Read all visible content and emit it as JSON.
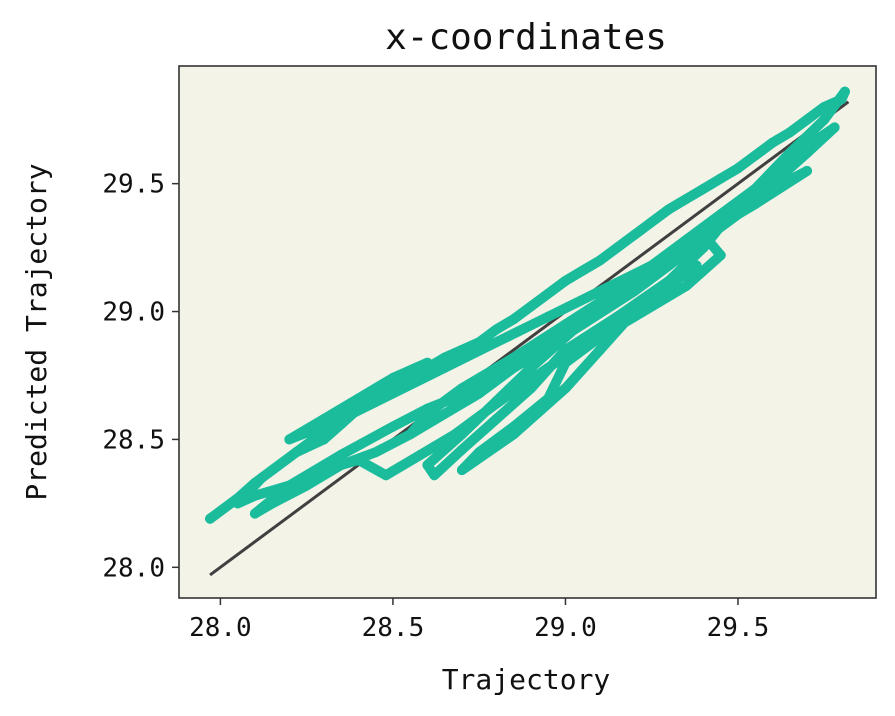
{
  "chart_data": {
    "type": "scatter",
    "title": "x-coordinates",
    "xlabel": "Trajectory",
    "ylabel": "Predicted Trajectory",
    "xlim": [
      27.88,
      29.9
    ],
    "ylim": [
      27.88,
      29.96
    ],
    "xticks": [
      28.0,
      28.5,
      29.0,
      29.5
    ],
    "yticks": [
      28.0,
      28.5,
      29.0,
      29.5
    ],
    "grid": false,
    "legend": "none",
    "colors": {
      "plot_background": "#f3f3e8",
      "points": "#1abc9c",
      "reference_line": "#404040",
      "axes": "#333333"
    },
    "series": [
      {
        "kind": "reference_line",
        "x": [
          27.97,
          29.82
        ],
        "y": [
          27.97,
          29.82
        ]
      },
      {
        "kind": "trajectory_points",
        "x": [
          27.97,
          28.05,
          28.1,
          28.15,
          28.22,
          28.3,
          28.35,
          28.4,
          28.45,
          28.5,
          28.55,
          28.6,
          28.65,
          28.7,
          28.75,
          28.8,
          28.85,
          28.9,
          28.95,
          29.0,
          29.05,
          29.1,
          29.15,
          29.2,
          29.25,
          29.3,
          29.35,
          29.4,
          29.45,
          29.5,
          29.55,
          29.6,
          29.65,
          29.7,
          29.75,
          29.8,
          29.81,
          29.75,
          29.65,
          29.55,
          29.45,
          29.35,
          29.25,
          29.15,
          29.05,
          28.95,
          28.85,
          28.75,
          28.65,
          28.55,
          28.45,
          28.35,
          28.25,
          28.15,
          28.1,
          28.2,
          28.35,
          28.5,
          28.6,
          28.75,
          28.9,
          29.05,
          29.2,
          29.3,
          29.4,
          29.5,
          29.6,
          29.7,
          29.78,
          29.65,
          29.5,
          29.4,
          29.3,
          29.15,
          29.0,
          28.9,
          28.8,
          28.7,
          28.62,
          28.6,
          28.7,
          28.8,
          28.9,
          29.0,
          29.1,
          29.2,
          29.3,
          29.4,
          29.45,
          29.35,
          29.2,
          29.1,
          29.0,
          28.95,
          28.85,
          28.75,
          28.7,
          28.85,
          29.0,
          29.1,
          29.2,
          29.3,
          29.38,
          29.25,
          29.1,
          28.95,
          28.8,
          28.68,
          28.58,
          28.48,
          28.4,
          28.3,
          28.2,
          28.1,
          28.05,
          28.12,
          28.22,
          28.32,
          28.42,
          28.52,
          28.6,
          28.5,
          28.4,
          28.3,
          28.2,
          28.35,
          28.5,
          28.65,
          28.8,
          28.95,
          29.1,
          29.25,
          29.4,
          29.55,
          29.7,
          29.6,
          29.45,
          29.3,
          29.15,
          29.0,
          28.85,
          28.7,
          28.6,
          28.55
        ],
        "y": [
          28.19,
          28.27,
          28.33,
          28.38,
          28.45,
          28.5,
          28.56,
          28.62,
          28.66,
          28.7,
          28.74,
          28.78,
          28.82,
          28.85,
          28.88,
          28.93,
          28.97,
          29.02,
          29.07,
          29.12,
          29.16,
          29.2,
          29.25,
          29.3,
          29.35,
          29.4,
          29.44,
          29.48,
          29.52,
          29.56,
          29.61,
          29.66,
          29.7,
          29.75,
          29.8,
          29.83,
          29.86,
          29.75,
          29.62,
          29.48,
          29.38,
          29.28,
          29.18,
          29.08,
          28.98,
          28.88,
          28.78,
          28.68,
          28.6,
          28.52,
          28.45,
          28.4,
          28.32,
          28.25,
          28.21,
          28.32,
          28.44,
          28.55,
          28.62,
          28.7,
          28.82,
          28.95,
          29.08,
          29.18,
          29.28,
          29.38,
          29.5,
          29.62,
          29.72,
          29.6,
          29.42,
          29.25,
          29.12,
          28.98,
          28.85,
          28.7,
          28.58,
          28.46,
          28.36,
          28.4,
          28.52,
          28.65,
          28.78,
          28.9,
          29.02,
          29.12,
          29.22,
          29.3,
          29.22,
          29.1,
          28.98,
          28.9,
          28.8,
          28.66,
          28.55,
          28.45,
          28.38,
          28.52,
          28.7,
          28.85,
          29.0,
          29.1,
          29.18,
          29.05,
          28.92,
          28.78,
          28.64,
          28.52,
          28.44,
          28.36,
          28.42,
          28.38,
          28.32,
          28.28,
          28.25,
          28.35,
          28.45,
          28.55,
          28.65,
          28.74,
          28.8,
          28.74,
          28.66,
          28.58,
          28.5,
          28.58,
          28.68,
          28.78,
          28.88,
          28.98,
          29.08,
          29.18,
          29.3,
          29.42,
          29.55,
          29.48,
          29.35,
          29.22,
          29.08,
          28.95,
          28.82,
          28.7,
          28.6,
          28.52
        ]
      }
    ]
  }
}
